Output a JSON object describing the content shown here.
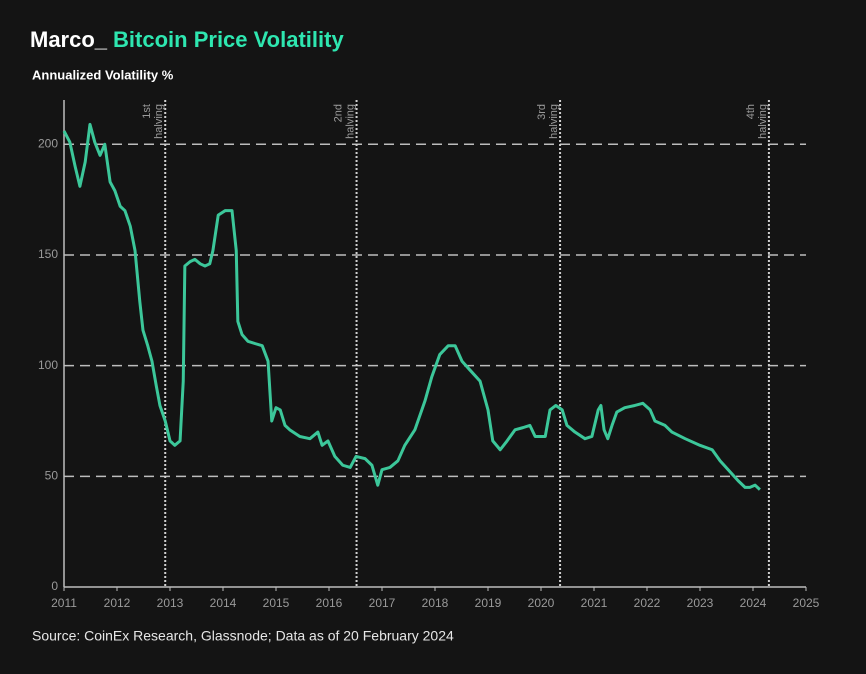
{
  "chart_data": {
    "type": "line",
    "title_prefix": "Marco_",
    "title": "Bitcoin Price Volatility",
    "subtitle": "Annualized Volatility %",
    "source": "Source: CoinEx Research, Glassnode; Data as of 20 February 2024",
    "xlim": [
      2011,
      2025
    ],
    "xticks": [
      2011,
      2012,
      2013,
      2014,
      2015,
      2016,
      2017,
      2018,
      2019,
      2020,
      2021,
      2022,
      2023,
      2024,
      2025
    ],
    "ylim": [
      0,
      220
    ],
    "yticks": [
      0,
      50,
      100,
      150,
      200
    ],
    "grid": true,
    "series": [
      {
        "name": "Annualized Volatility",
        "color": "#3cc79a",
        "x": [
          2011.0,
          2011.11,
          2011.21,
          2011.3,
          2011.4,
          2011.49,
          2011.58,
          2011.68,
          2011.77,
          2011.87,
          2011.96,
          2012.06,
          2012.15,
          2012.25,
          2012.34,
          2012.43,
          2012.49,
          2012.58,
          2012.66,
          2012.74,
          2012.81,
          2012.91,
          2013.0,
          2013.09,
          2013.19,
          2013.25,
          2013.28,
          2013.38,
          2013.47,
          2013.57,
          2013.66,
          2013.75,
          2013.81,
          2013.91,
          2014.04,
          2014.17,
          2014.25,
          2014.28,
          2014.36,
          2014.47,
          2014.6,
          2014.74,
          2014.85,
          2014.92,
          2015.0,
          2015.08,
          2015.17,
          2015.26,
          2015.45,
          2015.64,
          2015.79,
          2015.87,
          2015.98,
          2016.11,
          2016.26,
          2016.4,
          2016.51,
          2016.68,
          2016.81,
          2016.92,
          2017.0,
          2017.15,
          2017.3,
          2017.43,
          2017.62,
          2017.81,
          2017.94,
          2018.09,
          2018.25,
          2018.38,
          2018.51,
          2018.66,
          2018.85,
          2019.0,
          2019.09,
          2019.23,
          2019.36,
          2019.51,
          2019.66,
          2019.79,
          2019.89,
          2020.08,
          2020.17,
          2020.28,
          2020.4,
          2020.49,
          2020.64,
          2020.83,
          2020.96,
          2021.08,
          2021.13,
          2021.19,
          2021.26,
          2021.34,
          2021.43,
          2021.58,
          2021.77,
          2021.92,
          2022.06,
          2022.15,
          2022.34,
          2022.47,
          2022.72,
          2023.0,
          2023.23,
          2023.38,
          2023.53,
          2023.72,
          2023.85,
          2023.94,
          2024.04,
          2024.13
        ],
        "values": [
          206,
          201,
          190,
          181,
          192,
          209,
          201,
          195,
          200,
          183,
          179,
          172,
          170,
          163,
          152,
          129,
          116,
          109,
          102,
          91,
          82,
          75,
          66,
          64,
          66,
          93,
          145,
          147,
          148,
          146,
          145,
          146,
          152,
          168,
          170,
          170,
          152,
          120,
          114,
          111,
          110,
          109,
          102,
          75,
          81,
          80,
          73,
          71,
          68,
          67,
          70,
          64,
          66,
          59,
          55,
          54,
          59,
          58,
          55,
          46,
          53,
          54,
          57,
          64,
          71,
          84,
          95,
          105,
          109,
          109,
          102,
          98,
          93,
          80,
          66,
          62,
          66,
          71,
          72,
          73,
          68,
          68,
          80,
          82,
          80,
          73,
          70,
          67,
          68,
          80,
          82,
          71,
          67,
          73,
          79,
          81,
          82,
          83,
          80,
          75,
          73,
          70,
          67,
          64,
          62,
          57,
          53,
          48,
          45,
          45,
          46,
          44
        ]
      }
    ],
    "annotations": [
      {
        "x": 2012.91,
        "lines": [
          "1st",
          "halving"
        ]
      },
      {
        "x": 2016.52,
        "lines": [
          "2nd",
          "halving"
        ]
      },
      {
        "x": 2020.36,
        "lines": [
          "3rd",
          "halving"
        ]
      },
      {
        "x": 2024.3,
        "lines": [
          "4th",
          "halving"
        ]
      }
    ]
  }
}
